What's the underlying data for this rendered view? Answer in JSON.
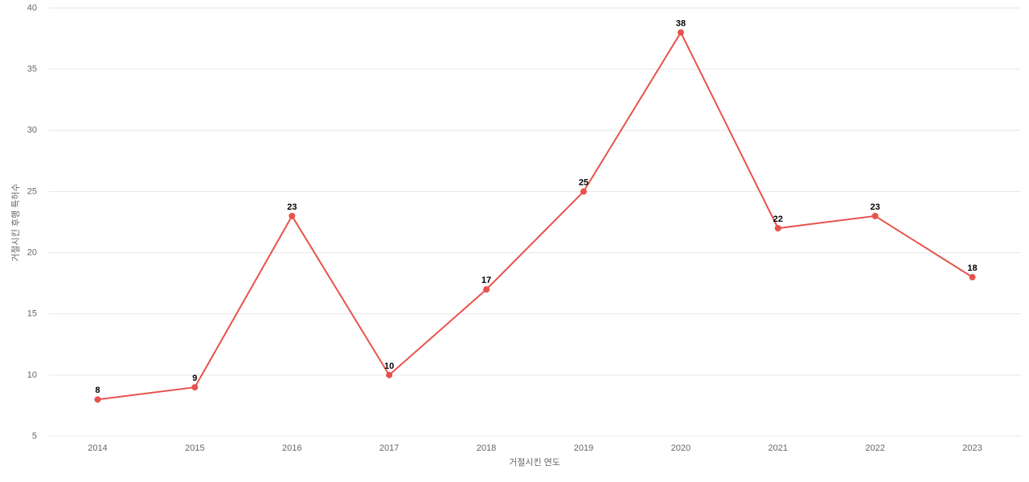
{
  "chart_data": {
    "type": "line",
    "x_label": "거절시킨 연도",
    "y_label": "거절시킨 후행 특허수",
    "categories": [
      "2014",
      "2015",
      "2016",
      "2017",
      "2018",
      "2019",
      "2020",
      "2021",
      "2022",
      "2023"
    ],
    "series": [
      {
        "color": "#e8524c",
        "values": [
          8,
          9,
          23,
          10,
          17,
          25,
          38,
          22,
          23,
          18
        ]
      }
    ],
    "ylim": [
      5,
      40
    ],
    "yticks": [
      5,
      10,
      15,
      20,
      25,
      30,
      35,
      40
    ],
    "grid": true
  }
}
